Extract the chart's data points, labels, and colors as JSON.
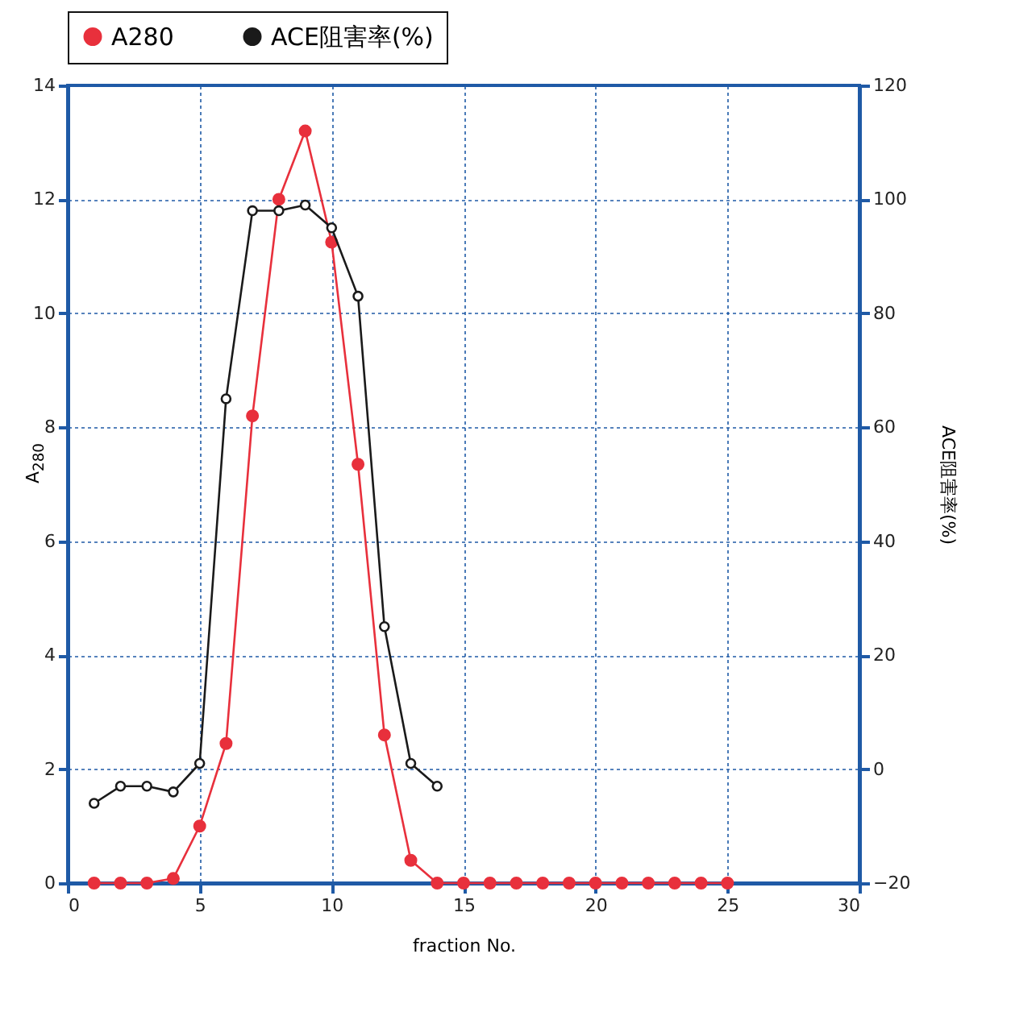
{
  "chart_data": {
    "type": "line",
    "xlabel": "fraction No.",
    "ylabel": "A$_{280}$",
    "y2label": "ACE阻害率(%)",
    "x": [
      1,
      2,
      3,
      4,
      5,
      6,
      7,
      8,
      9,
      10,
      11,
      12,
      13,
      14,
      15,
      16,
      17,
      18,
      19,
      20,
      21,
      22,
      23,
      24,
      25
    ],
    "series": [
      {
        "name": "A280",
        "color": "#e8303c",
        "values": [
          0,
          0,
          0,
          0.08,
          1.0,
          2.45,
          8.2,
          12.0,
          13.2,
          11.25,
          7.35,
          2.6,
          0.4,
          0,
          0,
          0,
          0,
          0,
          0,
          0,
          0,
          0,
          0,
          0,
          0
        ]
      },
      {
        "name": "ACE阻害率(%)",
        "color": "#1a1a1a",
        "axis": "y2",
        "x": [
          1,
          2,
          3,
          4,
          5,
          6,
          7,
          8,
          9,
          10,
          11,
          12,
          13,
          14
        ],
        "values": [
          -6,
          -3,
          -3,
          -4,
          1,
          65,
          98,
          98,
          99,
          95,
          83,
          25,
          1,
          -3
        ]
      }
    ],
    "xlim": [
      0,
      30
    ],
    "xticks": [
      0,
      5,
      10,
      15,
      20,
      25,
      30
    ],
    "ylim": [
      0,
      14
    ],
    "yticks": [
      0,
      2,
      4,
      6,
      8,
      10,
      12,
      14
    ],
    "y2lim": [
      -20,
      120
    ],
    "y2ticks": [
      -20,
      0,
      20,
      40,
      60,
      80,
      100,
      120
    ],
    "grid": true,
    "legend": "top",
    "marker": "circle",
    "line_style": "solid"
  }
}
